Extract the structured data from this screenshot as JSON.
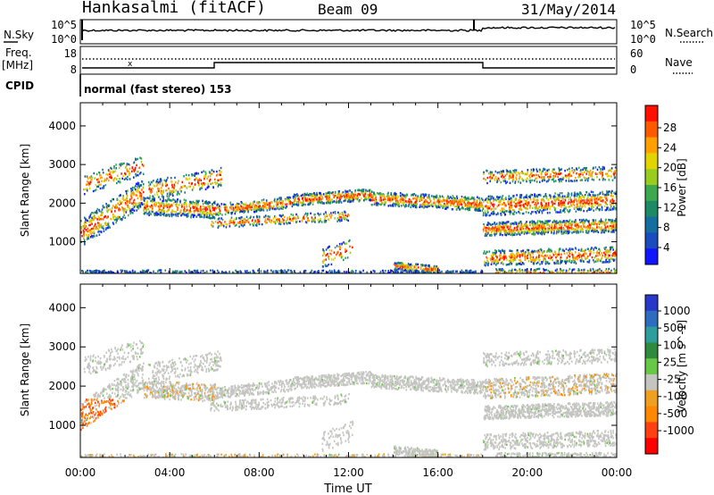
{
  "header": {
    "station": "Hankasalmi (fitACF)",
    "beam": "Beam 09",
    "date": "31/May/2014"
  },
  "strip_panel": {
    "left_label": "N.Sky",
    "left_ticks": [
      "10^5",
      "10^0"
    ],
    "right_label": "N.Search",
    "right_ticks": [
      "10^5",
      "10^0"
    ]
  },
  "freq_panel": {
    "left_label_1": "Freq.",
    "left_label_2": "[MHz]",
    "left_ticks": [
      "18",
      "8"
    ],
    "right_label": "Nave",
    "right_ticks": [
      "60",
      "0"
    ],
    "cpid_label": "CPID",
    "cpid_text": "normal (fast stereo) 153"
  },
  "chart_data": [
    {
      "type": "heatmap",
      "title": "",
      "xlabel": "",
      "ylabel": "Slant Range [km]",
      "x_ticks": [
        "00:00",
        "04:00",
        "08:00",
        "12:00",
        "16:00",
        "20:00",
        "00:00"
      ],
      "x_range_hours": [
        0,
        24
      ],
      "y_ticks": [
        1000,
        2000,
        3000,
        4000
      ],
      "ylim": [
        180,
        4600
      ],
      "colorbar": {
        "label": "Power [dB]",
        "ticks": [
          "28",
          "24",
          "20",
          "16",
          "12",
          "8",
          "4"
        ],
        "colors": [
          "#ff1000",
          "#ff5a00",
          "#ffa000",
          "#e2d400",
          "#9acc20",
          "#3ea84e",
          "#1c8a64",
          "#166ea0",
          "#1a4cc0",
          "#1014ff"
        ]
      }
    },
    {
      "type": "heatmap",
      "title": "",
      "xlabel": "Time UT",
      "ylabel": "Slant Range [km]",
      "x_ticks": [
        "00:00",
        "04:00",
        "08:00",
        "12:00",
        "16:00",
        "20:00",
        "00:00"
      ],
      "x_range_hours": [
        0,
        24
      ],
      "y_ticks": [
        1000,
        2000,
        3000,
        4000
      ],
      "ylim": [
        180,
        4600
      ],
      "colorbar": {
        "label": "Velocity [m s^-1]",
        "ticks": [
          "1000",
          "500",
          "100",
          "25",
          "-25",
          "-100",
          "-500",
          "-1000"
        ],
        "colors": [
          "#2838c8",
          "#2e6cc0",
          "#2e9e9c",
          "#2e8a3c",
          "#66c844",
          "#c4c4c0",
          "#f0a020",
          "#ff8800",
          "#ff4010",
          "#ff0000"
        ]
      }
    }
  ]
}
